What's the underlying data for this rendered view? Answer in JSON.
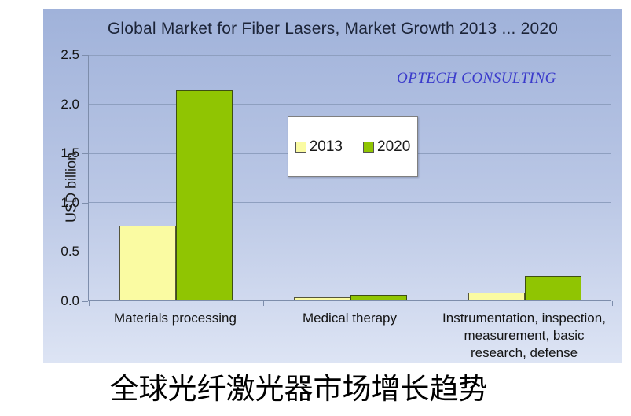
{
  "chart_data": {
    "type": "bar",
    "title": "Global Market for Fiber Lasers, Market Growth 2013 ... 2020",
    "watermark": "OPTECH CONSULTING",
    "ylabel": "USD billion",
    "ylim": [
      0,
      2.5
    ],
    "yticks": [
      2.5,
      2.0,
      1.5,
      1.0,
      0.5,
      0.0
    ],
    "grid": true,
    "legend_position": "upper-center",
    "categories": [
      "Materials processing",
      "Medical therapy",
      "Instrumentation, inspection, measurement, basic research, defense"
    ],
    "series": [
      {
        "name": "2013",
        "color": "#fafba2",
        "border": "#55553a",
        "values": [
          0.76,
          0.03,
          0.08
        ]
      },
      {
        "name": "2020",
        "color": "#90c502",
        "border": "#3e4f12",
        "values": [
          2.13,
          0.06,
          0.25
        ]
      }
    ]
  },
  "caption": "全球光纤激光器市场增长趋势",
  "colors": {
    "panel_top": "#a0b2da",
    "panel_bottom": "#dde4f4",
    "gridline": "#8e9fbf",
    "axis_line": "#7d8dab",
    "title_text": "#1c2438",
    "watermark_text": "#3a3acb",
    "axis_text": "#141414",
    "legend_bg": "#ffffff",
    "legend_border": "#7f7f7f"
  }
}
